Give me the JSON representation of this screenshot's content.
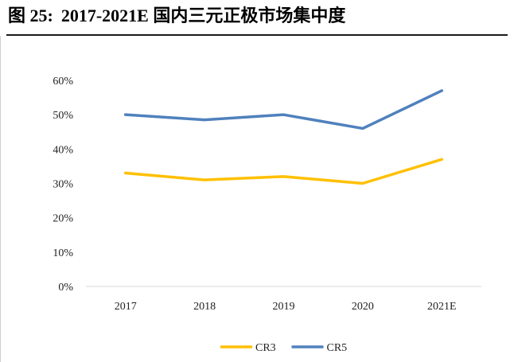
{
  "title": {
    "figure_label": "图 25:",
    "text": "2017-2021E 国内三元正极市场集中度"
  },
  "chart_data": {
    "type": "line",
    "title": "2017-2021E 国内三元正极市场集中度",
    "categories": [
      "2017",
      "2018",
      "2019",
      "2020",
      "2021E"
    ],
    "series": [
      {
        "name": "CR3",
        "color": "#FFC000",
        "values": [
          0.33,
          0.31,
          0.32,
          0.3,
          0.37
        ]
      },
      {
        "name": "CR5",
        "color": "#4F81BD",
        "values": [
          0.5,
          0.485,
          0.5,
          0.46,
          0.57
        ]
      }
    ],
    "y_ticks": [
      "0%",
      "10%",
      "20%",
      "30%",
      "40%",
      "50%",
      "60%"
    ],
    "ylim": [
      0,
      0.6
    ],
    "xlabel": "",
    "ylabel": "",
    "grid": false,
    "legend": "bottom-center"
  }
}
